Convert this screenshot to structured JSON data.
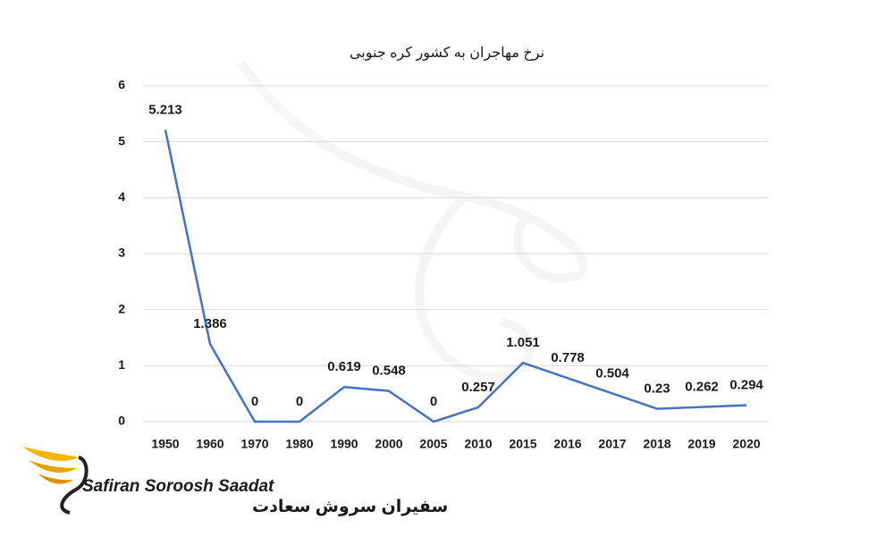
{
  "chart_data": {
    "type": "line",
    "title": "نرخ مهاجران به کشور کره جنوبی",
    "categories": [
      "1950",
      "1960",
      "1970",
      "1980",
      "1990",
      "2000",
      "2005",
      "2010",
      "2015",
      "2016",
      "2017",
      "2018",
      "2019",
      "2020"
    ],
    "series": [
      {
        "name": null,
        "color": "#4472c4",
        "values": [
          5.213,
          1.386,
          0,
          0,
          0.619,
          0.548,
          0,
          0.257,
          1.051,
          0.778,
          0.504,
          0.23,
          0.262,
          0.294
        ]
      }
    ],
    "ylim": [
      0,
      6
    ],
    "yticks": [
      0,
      1,
      2,
      3,
      4,
      5,
      6
    ],
    "grid": true,
    "data_labels": true
  },
  "logo": {
    "name": "Safiran Soroosh Saadat",
    "name_fa": "سفیران سروش سعادت"
  }
}
